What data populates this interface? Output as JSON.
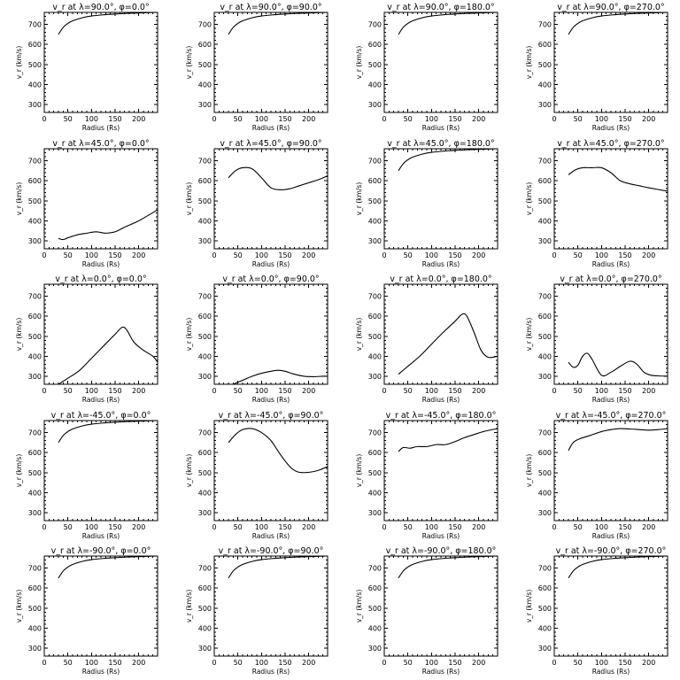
{
  "chart_data": [
    {
      "type": "line",
      "title": "v_r at λ=90.0°, φ=0.0°",
      "xlabel": "Radius (Rs)",
      "ylabel": "v_r (km/s)",
      "xlim": [
        0,
        240
      ],
      "ylim": [
        260,
        760
      ],
      "xticks": [
        0,
        50,
        100,
        150,
        200
      ],
      "yticks": [
        300,
        400,
        500,
        600,
        700
      ],
      "x": [
        30,
        40,
        50,
        60,
        80,
        100,
        125,
        150,
        175,
        200,
        240
      ],
      "y": [
        650,
        685,
        705,
        718,
        733,
        742,
        748,
        752,
        755,
        757,
        760
      ]
    },
    {
      "type": "line",
      "title": "v_r at λ=90.0°, φ=90.0°",
      "xlabel": "Radius (Rs)",
      "ylabel": "v_r (km/s)",
      "xlim": [
        0,
        240
      ],
      "ylim": [
        260,
        760
      ],
      "xticks": [
        0,
        50,
        100,
        150,
        200
      ],
      "yticks": [
        300,
        400,
        500,
        600,
        700
      ],
      "x": [
        30,
        40,
        50,
        60,
        80,
        100,
        125,
        150,
        175,
        200,
        240
      ],
      "y": [
        650,
        685,
        705,
        718,
        733,
        742,
        748,
        752,
        755,
        757,
        760
      ]
    },
    {
      "type": "line",
      "title": "v_r at λ=90.0°, φ=180.0°",
      "xlabel": "Radius (Rs)",
      "ylabel": "v_r (km/s)",
      "xlim": [
        0,
        240
      ],
      "ylim": [
        260,
        760
      ],
      "xticks": [
        0,
        50,
        100,
        150,
        200
      ],
      "yticks": [
        300,
        400,
        500,
        600,
        700
      ],
      "x": [
        30,
        40,
        50,
        60,
        80,
        100,
        125,
        150,
        175,
        200,
        240
      ],
      "y": [
        650,
        685,
        705,
        718,
        733,
        742,
        748,
        752,
        755,
        757,
        760
      ]
    },
    {
      "type": "line",
      "title": "v_r at λ=90.0°, φ=270.0°",
      "xlabel": "Radius (Rs)",
      "ylabel": "v_r (km/s)",
      "xlim": [
        0,
        240
      ],
      "ylim": [
        260,
        760
      ],
      "xticks": [
        0,
        50,
        100,
        150,
        200
      ],
      "yticks": [
        300,
        400,
        500,
        600,
        700
      ],
      "x": [
        30,
        40,
        50,
        60,
        80,
        100,
        125,
        150,
        175,
        200,
        240
      ],
      "y": [
        650,
        685,
        705,
        718,
        733,
        742,
        748,
        752,
        755,
        757,
        760
      ]
    },
    {
      "type": "line",
      "title": "v_r at λ=45.0°, φ=0.0°",
      "xlabel": "Radius (Rs)",
      "ylabel": "v_r (km/s)",
      "xlim": [
        0,
        240
      ],
      "ylim": [
        260,
        760
      ],
      "xticks": [
        0,
        50,
        100,
        150,
        200
      ],
      "yticks": [
        300,
        400,
        500,
        600,
        700
      ],
      "x": [
        30,
        40,
        50,
        70,
        90,
        110,
        130,
        150,
        170,
        200,
        240
      ],
      "y": [
        312,
        306,
        315,
        330,
        338,
        345,
        338,
        345,
        368,
        400,
        455
      ]
    },
    {
      "type": "line",
      "title": "v_r at λ=45.0°, φ=90.0°",
      "xlabel": "Radius (Rs)",
      "ylabel": "v_r (km/s)",
      "xlim": [
        0,
        240
      ],
      "ylim": [
        260,
        760
      ],
      "xticks": [
        0,
        50,
        100,
        150,
        200
      ],
      "yticks": [
        300,
        400,
        500,
        600,
        700
      ],
      "x": [
        30,
        45,
        60,
        80,
        100,
        120,
        140,
        160,
        180,
        200,
        220,
        240
      ],
      "y": [
        615,
        650,
        665,
        660,
        615,
        565,
        555,
        560,
        575,
        590,
        605,
        625
      ]
    },
    {
      "type": "line",
      "title": "v_r at λ=45.0°, φ=180.0°",
      "xlabel": "Radius (Rs)",
      "ylabel": "v_r (km/s)",
      "xlim": [
        0,
        240
      ],
      "ylim": [
        260,
        760
      ],
      "xticks": [
        0,
        50,
        100,
        150,
        200
      ],
      "yticks": [
        300,
        400,
        500,
        600,
        700
      ],
      "x": [
        30,
        40,
        50,
        60,
        80,
        100,
        125,
        150,
        175,
        200,
        240
      ],
      "y": [
        650,
        685,
        705,
        718,
        733,
        742,
        748,
        752,
        755,
        757,
        760
      ]
    },
    {
      "type": "line",
      "title": "v_r at λ=45.0°, φ=270.0°",
      "xlabel": "Radius (Rs)",
      "ylabel": "v_r (km/s)",
      "xlim": [
        0,
        240
      ],
      "ylim": [
        260,
        760
      ],
      "xticks": [
        0,
        50,
        100,
        150,
        200
      ],
      "yticks": [
        300,
        400,
        500,
        600,
        700
      ],
      "x": [
        30,
        45,
        60,
        80,
        100,
        120,
        140,
        160,
        180,
        200,
        240
      ],
      "y": [
        630,
        655,
        665,
        665,
        665,
        640,
        600,
        585,
        575,
        565,
        548
      ]
    },
    {
      "type": "line",
      "title": "v_r at λ=0.0°, φ=0.0°",
      "xlabel": "Radius (Rs)",
      "ylabel": "v_r (km/s)",
      "xlim": [
        0,
        240
      ],
      "ylim": [
        260,
        760
      ],
      "xticks": [
        0,
        50,
        100,
        150,
        200
      ],
      "yticks": [
        300,
        400,
        500,
        600,
        700
      ],
      "x": [
        30,
        50,
        75,
        100,
        125,
        150,
        165,
        175,
        190,
        210,
        230,
        240
      ],
      "y": [
        260,
        290,
        330,
        390,
        450,
        510,
        545,
        530,
        470,
        430,
        400,
        370
      ]
    },
    {
      "type": "line",
      "title": "v_r at λ=0.0°, φ=90.0°",
      "xlabel": "Radius (Rs)",
      "ylabel": "v_r (km/s)",
      "xlim": [
        0,
        240
      ],
      "ylim": [
        260,
        760
      ],
      "xticks": [
        0,
        50,
        100,
        150,
        200
      ],
      "yticks": [
        300,
        400,
        500,
        600,
        700
      ],
      "x": [
        40,
        60,
        80,
        100,
        120,
        135,
        150,
        170,
        190,
        210,
        230,
        240
      ],
      "y": [
        260,
        280,
        300,
        315,
        325,
        330,
        325,
        310,
        300,
        298,
        300,
        300
      ]
    },
    {
      "type": "line",
      "title": "v_r at λ=0.0°, φ=180.0°",
      "xlabel": "Radius (Rs)",
      "ylabel": "v_r (km/s)",
      "xlim": [
        0,
        240
      ],
      "ylim": [
        260,
        760
      ],
      "xticks": [
        0,
        50,
        100,
        150,
        200
      ],
      "yticks": [
        300,
        400,
        500,
        600,
        700
      ],
      "x": [
        30,
        50,
        75,
        100,
        125,
        150,
        165,
        175,
        190,
        205,
        220,
        240
      ],
      "y": [
        310,
        350,
        400,
        460,
        520,
        575,
        610,
        600,
        520,
        430,
        395,
        400
      ]
    },
    {
      "type": "line",
      "title": "v_r at λ=0.0°, φ=270.0°",
      "xlabel": "Radius (Rs)",
      "ylabel": "v_r (km/s)",
      "xlim": [
        0,
        240
      ],
      "ylim": [
        260,
        760
      ],
      "xticks": [
        0,
        50,
        100,
        150,
        200
      ],
      "yticks": [
        300,
        400,
        500,
        600,
        700
      ],
      "x": [
        30,
        40,
        50,
        60,
        70,
        80,
        100,
        120,
        140,
        160,
        175,
        190,
        205,
        220,
        240
      ],
      "y": [
        370,
        345,
        355,
        400,
        415,
        385,
        305,
        320,
        350,
        375,
        360,
        320,
        305,
        302,
        300
      ]
    },
    {
      "type": "line",
      "title": "v_r at λ=-45.0°, φ=0.0°",
      "xlabel": "Radius (Rs)",
      "ylabel": "v_r (km/s)",
      "xlim": [
        0,
        240
      ],
      "ylim": [
        260,
        760
      ],
      "xticks": [
        0,
        50,
        100,
        150,
        200
      ],
      "yticks": [
        300,
        400,
        500,
        600,
        700
      ],
      "x": [
        30,
        40,
        50,
        60,
        80,
        100,
        125,
        150,
        175,
        200,
        240
      ],
      "y": [
        650,
        685,
        705,
        718,
        733,
        742,
        748,
        752,
        755,
        757,
        760
      ]
    },
    {
      "type": "line",
      "title": "v_r at λ=-45.0°, φ=90.0°",
      "xlabel": "Radius (Rs)",
      "ylabel": "v_r (km/s)",
      "xlim": [
        0,
        240
      ],
      "ylim": [
        260,
        760
      ],
      "xticks": [
        0,
        50,
        100,
        150,
        200
      ],
      "yticks": [
        300,
        400,
        500,
        600,
        700
      ],
      "x": [
        30,
        45,
        60,
        80,
        100,
        120,
        140,
        160,
        175,
        190,
        210,
        225,
        240
      ],
      "y": [
        650,
        690,
        715,
        720,
        700,
        660,
        590,
        530,
        505,
        500,
        505,
        515,
        530
      ]
    },
    {
      "type": "line",
      "title": "v_r at λ=-45.0°, φ=180.0°",
      "xlabel": "Radius (Rs)",
      "ylabel": "v_r (km/s)",
      "xlim": [
        0,
        240
      ],
      "ylim": [
        260,
        760
      ],
      "xticks": [
        0,
        50,
        100,
        150,
        200
      ],
      "yticks": [
        300,
        400,
        500,
        600,
        700
      ],
      "x": [
        30,
        40,
        55,
        70,
        90,
        110,
        130,
        150,
        170,
        190,
        210,
        240
      ],
      "y": [
        605,
        625,
        622,
        630,
        630,
        640,
        640,
        655,
        675,
        690,
        705,
        720
      ]
    },
    {
      "type": "line",
      "title": "v_r at λ=-45.0°, φ=270.0°",
      "xlabel": "Radius (Rs)",
      "ylabel": "v_r (km/s)",
      "xlim": [
        0,
        240
      ],
      "ylim": [
        260,
        760
      ],
      "xticks": [
        0,
        50,
        100,
        150,
        200
      ],
      "yticks": [
        300,
        400,
        500,
        600,
        700
      ],
      "x": [
        30,
        40,
        55,
        75,
        100,
        120,
        140,
        160,
        180,
        200,
        220,
        240
      ],
      "y": [
        610,
        650,
        670,
        685,
        705,
        715,
        720,
        718,
        715,
        712,
        715,
        720
      ]
    },
    {
      "type": "line",
      "title": "v_r at λ=-90.0°, φ=0.0°",
      "xlabel": "Radius (Rs)",
      "ylabel": "v_r (km/s)",
      "xlim": [
        0,
        240
      ],
      "ylim": [
        260,
        760
      ],
      "xticks": [
        0,
        50,
        100,
        150,
        200
      ],
      "yticks": [
        300,
        400,
        500,
        600,
        700
      ],
      "x": [
        30,
        40,
        50,
        60,
        80,
        100,
        125,
        150,
        175,
        200,
        240
      ],
      "y": [
        650,
        685,
        705,
        718,
        733,
        742,
        748,
        752,
        755,
        757,
        760
      ]
    },
    {
      "type": "line",
      "title": "v_r at λ=-90.0°, φ=90.0°",
      "xlabel": "Radius (Rs)",
      "ylabel": "v_r (km/s)",
      "xlim": [
        0,
        240
      ],
      "ylim": [
        260,
        760
      ],
      "xticks": [
        0,
        50,
        100,
        150,
        200
      ],
      "yticks": [
        300,
        400,
        500,
        600,
        700
      ],
      "x": [
        30,
        40,
        50,
        60,
        80,
        100,
        125,
        150,
        175,
        200,
        240
      ],
      "y": [
        650,
        685,
        705,
        718,
        733,
        742,
        748,
        752,
        755,
        757,
        760
      ]
    },
    {
      "type": "line",
      "title": "v_r at λ=-90.0°, φ=180.0°",
      "xlabel": "Radius (Rs)",
      "ylabel": "v_r (km/s)",
      "xlim": [
        0,
        240
      ],
      "ylim": [
        260,
        760
      ],
      "xticks": [
        0,
        50,
        100,
        150,
        200
      ],
      "yticks": [
        300,
        400,
        500,
        600,
        700
      ],
      "x": [
        30,
        40,
        50,
        60,
        80,
        100,
        125,
        150,
        175,
        200,
        240
      ],
      "y": [
        650,
        685,
        705,
        718,
        733,
        742,
        748,
        752,
        755,
        757,
        760
      ]
    },
    {
      "type": "line",
      "title": "v_r at λ=-90.0°, φ=270.0°",
      "xlabel": "Radius (Rs)",
      "ylabel": "v_r (km/s)",
      "xlim": [
        0,
        240
      ],
      "ylim": [
        260,
        760
      ],
      "xticks": [
        0,
        50,
        100,
        150,
        200
      ],
      "yticks": [
        300,
        400,
        500,
        600,
        700
      ],
      "x": [
        30,
        40,
        50,
        60,
        80,
        100,
        125,
        150,
        175,
        200,
        240
      ],
      "y": [
        650,
        685,
        705,
        718,
        733,
        742,
        748,
        752,
        755,
        757,
        760
      ]
    }
  ]
}
